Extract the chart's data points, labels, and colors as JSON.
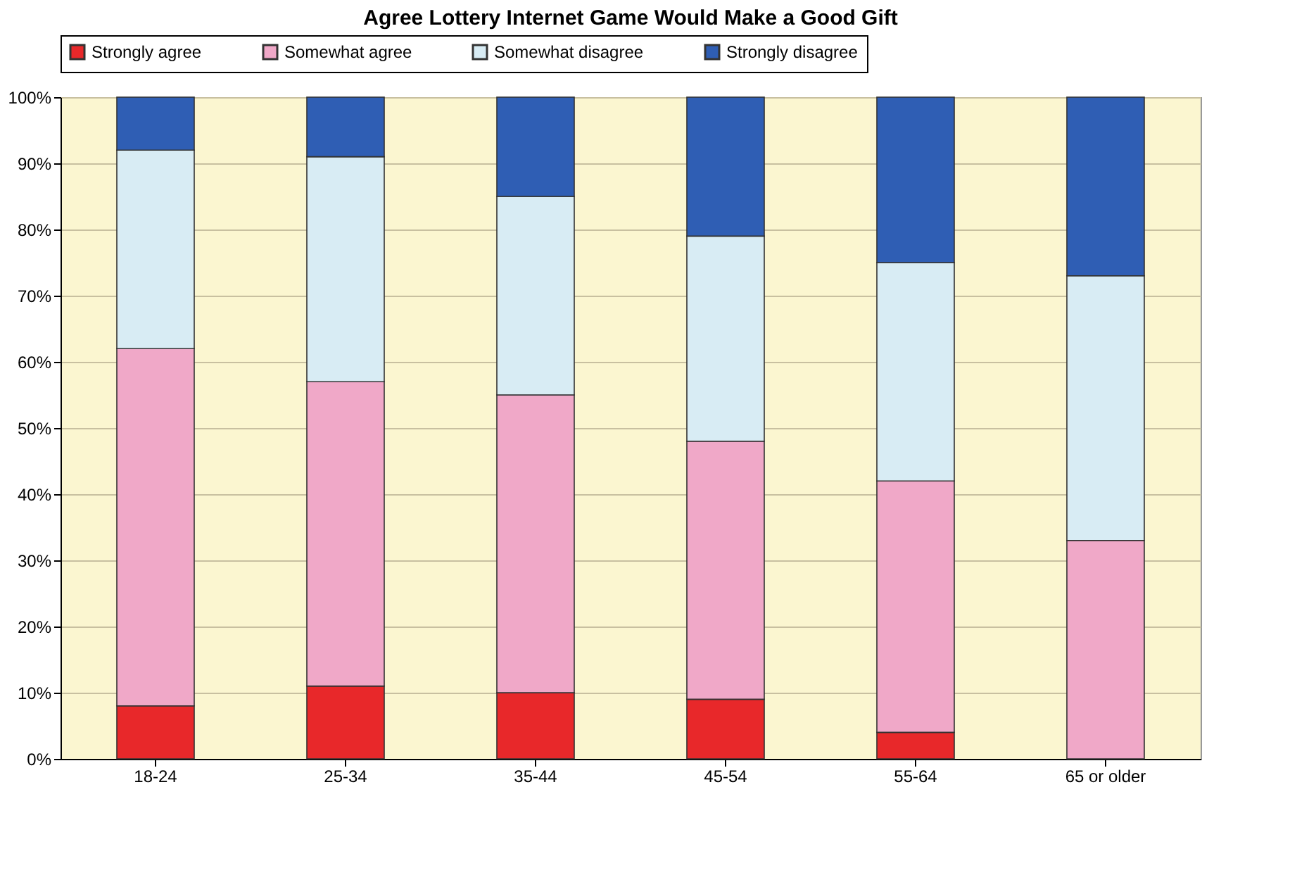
{
  "chart_data": {
    "type": "bar",
    "stacked": true,
    "title": "Agree Lottery Internet Game Would Make a Good Gift",
    "categories": [
      "18-24",
      "25-34",
      "35-44",
      "45-54",
      "55-64",
      "65 or older"
    ],
    "series": [
      {
        "name": "Strongly agree",
        "color": "#e8282a",
        "values": [
          8,
          11,
          10,
          9,
          4,
          0
        ]
      },
      {
        "name": "Somewhat agree",
        "color": "#f0a8c8",
        "values": [
          54,
          46,
          45,
          39,
          38,
          33
        ]
      },
      {
        "name": "Somewhat disagree",
        "color": "#d8ecf4",
        "values": [
          30,
          34,
          30,
          31,
          33,
          40
        ]
      },
      {
        "name": "Strongly disagree",
        "color": "#2f5eb4",
        "values": [
          8,
          9,
          15,
          21,
          25,
          27
        ]
      }
    ],
    "ylim": [
      0,
      100
    ],
    "yticks": [
      {
        "value": 0,
        "label": "0%"
      },
      {
        "value": 10,
        "label": "10%"
      },
      {
        "value": 20,
        "label": "20%"
      },
      {
        "value": 30,
        "label": "30%"
      },
      {
        "value": 40,
        "label": "40%"
      },
      {
        "value": 50,
        "label": "50%"
      },
      {
        "value": 60,
        "label": "60%"
      },
      {
        "value": 70,
        "label": "70%"
      },
      {
        "value": 80,
        "label": "80%"
      },
      {
        "value": 90,
        "label": "90%"
      },
      {
        "value": 100,
        "label": "100%"
      }
    ],
    "grid": "y",
    "legend": "top"
  }
}
